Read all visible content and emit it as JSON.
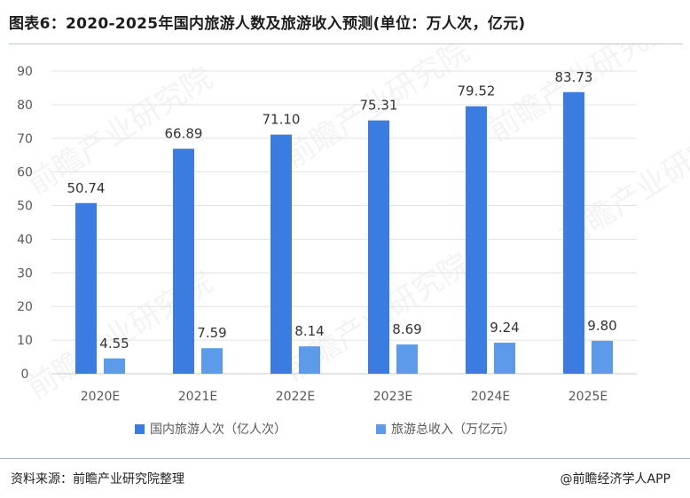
{
  "title": "图表6：2020-2025年国内旅游人数及旅游收入预测(单位：万人次，亿元)",
  "source": "资料来源：前瞻产业研究院整理",
  "brand": "@前瞻经济学人APP",
  "watermark": "前瞻产业研究院",
  "colors": {
    "series1": "#3a7ce0",
    "series2": "#5b9bea",
    "grid": "#e3e3e3",
    "axis": "#c8c8c8",
    "text": "#595959"
  },
  "chart_data": {
    "type": "bar",
    "categories": [
      "2020E",
      "2021E",
      "2022E",
      "2023E",
      "2024E",
      "2025E"
    ],
    "series": [
      {
        "name": "国内旅游人次（亿人次）",
        "values": [
          50.74,
          66.89,
          71.1,
          75.31,
          79.52,
          83.73
        ],
        "labels": [
          "50.74",
          "66.89",
          "71.10",
          "75.31",
          "79.52",
          "83.73"
        ]
      },
      {
        "name": "旅游总收入（万亿元）",
        "values": [
          4.55,
          7.59,
          8.14,
          8.69,
          9.24,
          9.8
        ],
        "labels": [
          "4.55",
          "7.59",
          "8.14",
          "8.69",
          "9.24",
          "9.80"
        ]
      }
    ],
    "ylim": [
      0,
      90
    ],
    "yticks": [
      0,
      10,
      20,
      30,
      40,
      50,
      60,
      70,
      80,
      90
    ],
    "grid": true,
    "legend": "bottom"
  }
}
